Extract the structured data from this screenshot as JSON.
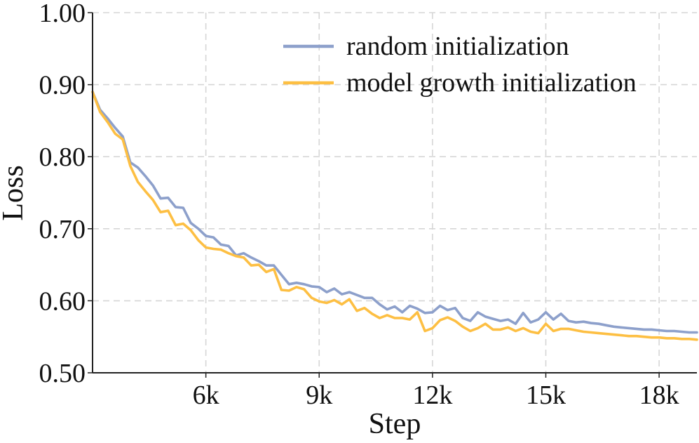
{
  "chart_data": {
    "type": "line",
    "title": "",
    "xlabel": "Step",
    "ylabel": "Loss",
    "xlim": [
      3000,
      19000
    ],
    "ylim": [
      0.5,
      1.0
    ],
    "x_ticks": [
      6000,
      9000,
      12000,
      15000,
      18000
    ],
    "x_tick_labels": [
      "6k",
      "9k",
      "12k",
      "15k",
      "18k"
    ],
    "y_ticks": [
      0.5,
      0.6,
      0.7,
      0.8,
      0.9,
      1.0
    ],
    "y_tick_labels": [
      "0.50",
      "0.60",
      "0.70",
      "0.80",
      "0.90",
      "1.00"
    ],
    "grid": true,
    "legend_position": "top-right",
    "x": [
      3000,
      3200,
      3400,
      3600,
      3800,
      4000,
      4200,
      4400,
      4600,
      4800,
      5000,
      5200,
      5400,
      5600,
      5800,
      6000,
      6200,
      6400,
      6600,
      6800,
      7000,
      7200,
      7400,
      7600,
      7800,
      8000,
      8200,
      8400,
      8600,
      8800,
      9000,
      9200,
      9400,
      9600,
      9800,
      10000,
      10200,
      10400,
      10600,
      10800,
      11000,
      11200,
      11400,
      11600,
      11800,
      12000,
      12200,
      12400,
      12600,
      12800,
      13000,
      13200,
      13400,
      13600,
      13800,
      14000,
      14200,
      14400,
      14600,
      14800,
      15000,
      15200,
      15400,
      15600,
      15800,
      16000,
      16200,
      16400,
      16600,
      16800,
      17000,
      17200,
      17400,
      17600,
      17800,
      18000,
      18200,
      18400,
      18600,
      18800,
      19000
    ],
    "series": [
      {
        "name": "random initialization",
        "color": "#8da0cb",
        "values": [
          0.89,
          0.865,
          0.853,
          0.84,
          0.828,
          0.792,
          0.785,
          0.773,
          0.76,
          0.742,
          0.743,
          0.73,
          0.729,
          0.708,
          0.7,
          0.69,
          0.688,
          0.678,
          0.676,
          0.663,
          0.666,
          0.66,
          0.655,
          0.649,
          0.649,
          0.636,
          0.623,
          0.625,
          0.623,
          0.62,
          0.619,
          0.612,
          0.617,
          0.609,
          0.612,
          0.608,
          0.604,
          0.604,
          0.595,
          0.588,
          0.592,
          0.584,
          0.593,
          0.589,
          0.583,
          0.584,
          0.593,
          0.587,
          0.59,
          0.576,
          0.572,
          0.584,
          0.578,
          0.575,
          0.572,
          0.574,
          0.568,
          0.583,
          0.57,
          0.574,
          0.584,
          0.574,
          0.582,
          0.572,
          0.57,
          0.571,
          0.569,
          0.568,
          0.566,
          0.564,
          0.563,
          0.562,
          0.561,
          0.56,
          0.56,
          0.559,
          0.558,
          0.558,
          0.557,
          0.556,
          0.556
        ]
      },
      {
        "name": "model growth initialization",
        "color": "#fdbf43",
        "values": [
          0.89,
          0.862,
          0.848,
          0.832,
          0.824,
          0.787,
          0.765,
          0.752,
          0.74,
          0.723,
          0.725,
          0.705,
          0.707,
          0.698,
          0.684,
          0.674,
          0.672,
          0.671,
          0.666,
          0.662,
          0.66,
          0.649,
          0.65,
          0.64,
          0.644,
          0.615,
          0.614,
          0.619,
          0.616,
          0.604,
          0.599,
          0.597,
          0.601,
          0.595,
          0.602,
          0.586,
          0.59,
          0.582,
          0.576,
          0.58,
          0.576,
          0.576,
          0.574,
          0.584,
          0.558,
          0.562,
          0.573,
          0.577,
          0.572,
          0.564,
          0.558,
          0.562,
          0.568,
          0.56,
          0.56,
          0.563,
          0.558,
          0.562,
          0.557,
          0.555,
          0.568,
          0.558,
          0.561,
          0.561,
          0.559,
          0.557,
          0.556,
          0.555,
          0.554,
          0.553,
          0.552,
          0.551,
          0.551,
          0.55,
          0.549,
          0.549,
          0.548,
          0.548,
          0.547,
          0.547,
          0.546
        ]
      }
    ]
  }
}
